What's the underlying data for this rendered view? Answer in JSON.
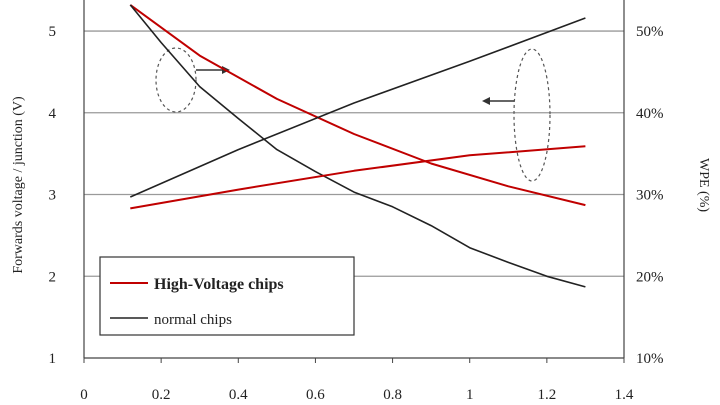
{
  "chart_data": {
    "type": "line",
    "title": "",
    "xlabel": "",
    "ylabel": "Forwards voltage / junction (V)",
    "y2label": "WPE (%)",
    "xlim": [
      0,
      1.4
    ],
    "ylim": [
      1,
      5.6
    ],
    "y2lim": [
      10,
      56
    ],
    "x_ticks": [
      "0",
      "0.2",
      "0.4",
      "0.6",
      "0.8",
      "1",
      "1.2",
      "1.4"
    ],
    "y_ticks": [
      "1",
      "2",
      "3",
      "4",
      "5"
    ],
    "y2_ticks": [
      "10%",
      "20%",
      "30%",
      "40%",
      "50%"
    ],
    "grid": "horizontal",
    "legend_position": "bottom-left",
    "legend": [
      {
        "label": "High-Voltage chips",
        "color": "#c00000"
      },
      {
        "label": "normal chips",
        "color": "#222222"
      }
    ],
    "series": [
      {
        "axis": "left",
        "color": "#c00000",
        "x": [
          0.12,
          0.3,
          0.5,
          0.7,
          0.9,
          1.1,
          1.3
        ],
        "y": [
          5.32,
          4.7,
          4.17,
          3.74,
          3.38,
          3.1,
          2.87
        ]
      },
      {
        "axis": "left",
        "color": "#222222",
        "x": [
          0.12,
          0.2,
          0.3,
          0.4,
          0.5,
          0.6,
          0.7,
          0.8,
          0.9,
          1.0,
          1.1,
          1.2,
          1.3
        ],
        "y": [
          5.32,
          4.86,
          4.32,
          3.93,
          3.55,
          3.28,
          3.03,
          2.85,
          2.62,
          2.35,
          2.17,
          2.0,
          1.87
        ]
      },
      {
        "axis": "right",
        "color": "#c00000",
        "x": [
          0.12,
          0.4,
          0.7,
          1.0,
          1.3
        ],
        "y": [
          28.3,
          30.6,
          32.9,
          34.8,
          35.9
        ]
      },
      {
        "axis": "right",
        "color": "#222222",
        "x": [
          0.12,
          0.4,
          0.7,
          1.0,
          1.3
        ],
        "y": [
          29.7,
          35.5,
          41.2,
          46.3,
          51.6
        ]
      }
    ]
  }
}
